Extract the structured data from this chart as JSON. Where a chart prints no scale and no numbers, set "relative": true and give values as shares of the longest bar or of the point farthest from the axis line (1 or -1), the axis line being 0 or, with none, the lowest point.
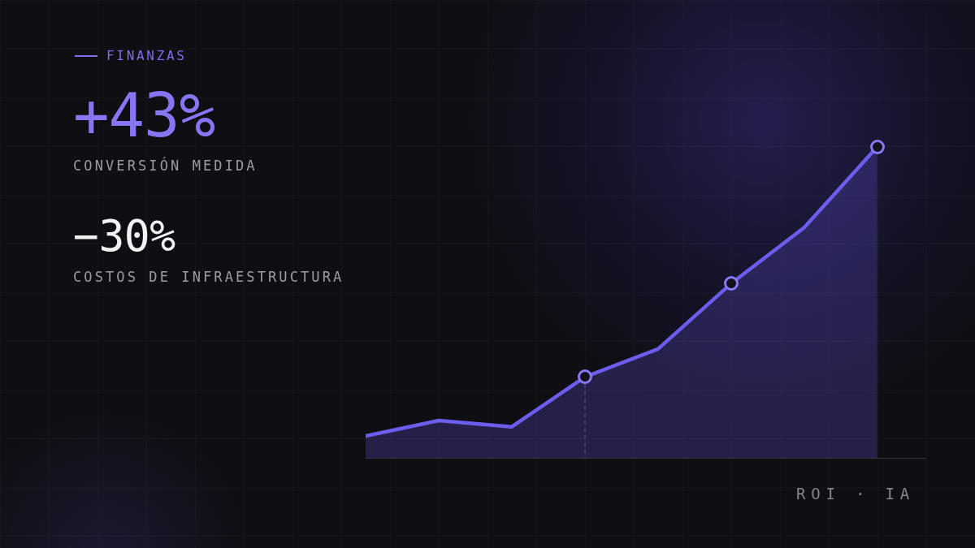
{
  "chart_data": {
    "type": "area",
    "title": "FINANZAS",
    "annotations": [
      "+43%",
      "CONVERSIÓN MEDIDA",
      "−30%",
      "COSTOS DE INFRAESTRUCTURA",
      "ROI · IA"
    ],
    "categories": [
      null,
      null,
      null,
      null,
      null,
      null,
      null,
      null
    ],
    "relative": true,
    "series": [
      {
        "color": "#6c5ded",
        "marker": "none",
        "values": [
          0.07,
          0.12,
          0.1,
          0.26,
          0.35,
          0.56,
          0.74,
          1
        ]
      }
    ]
  }
}
